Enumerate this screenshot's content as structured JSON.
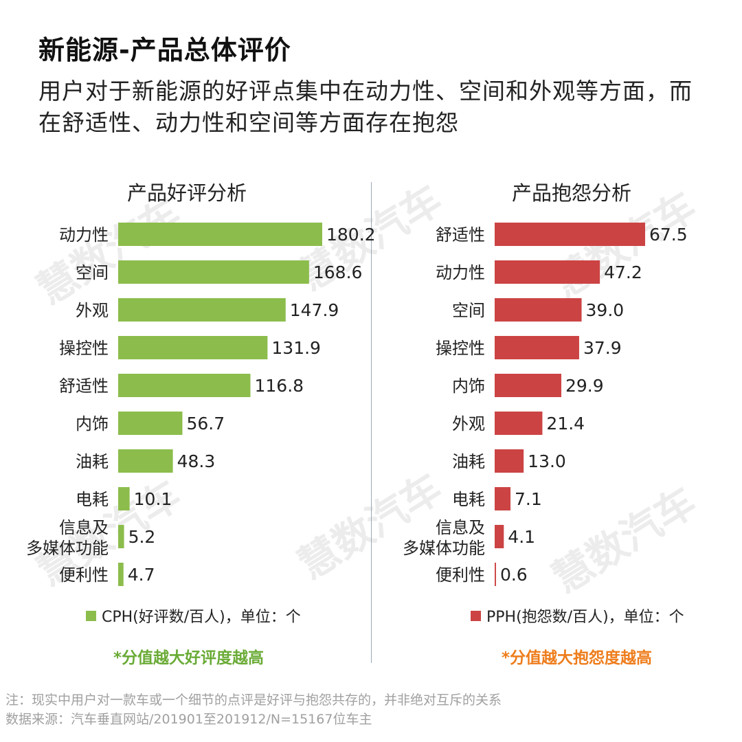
{
  "title": "新能源-产品总体评价",
  "subtitle": "用户对于新能源的好评点集中在动力性、空间和外观等方面，而在舒适性、动力性和空间等方面存在抱怨",
  "watermark": "慧数汽车",
  "colors": {
    "positive": "#8cbd4c",
    "negative": "#cc4344",
    "note_positive": "#6aab36",
    "note_negative": "#ee7d1c"
  },
  "chart_data": [
    {
      "type": "bar",
      "orientation": "horizontal",
      "title": "产品好评分析",
      "categories": [
        "动力性",
        "空间",
        "外观",
        "操控性",
        "舒适性",
        "内饰",
        "油耗",
        "电耗",
        "信息及\n多媒体功能",
        "便利性"
      ],
      "series": [
        {
          "name": "CPH(好评数/百人)，单位：个",
          "values": [
            180.2,
            168.6,
            147.9,
            131.9,
            116.8,
            56.7,
            48.3,
            10.1,
            5.2,
            4.7
          ]
        }
      ],
      "xlim": [
        0,
        180.2
      ],
      "legend": "bottom",
      "note": "*分值越大好评度越高"
    },
    {
      "type": "bar",
      "orientation": "horizontal",
      "title": "产品抱怨分析",
      "categories": [
        "舒适性",
        "动力性",
        "空间",
        "操控性",
        "内饰",
        "外观",
        "油耗",
        "电耗",
        "信息及\n多媒体功能",
        "便利性"
      ],
      "series": [
        {
          "name": "PPH(抱怨数/百人)，单位：个",
          "values": [
            67.5,
            47.2,
            39.0,
            37.9,
            29.9,
            21.4,
            13.0,
            7.1,
            4.1,
            0.6
          ]
        }
      ],
      "xlim": [
        0,
        67.5
      ],
      "legend": "bottom",
      "note": "*分值越大抱怨度越高"
    }
  ],
  "footnotes": {
    "note": "注：现实中用户对一款车或一个细节的点评是好评与抱怨共存的，并非绝对互斥的关系",
    "source": "数据来源：汽车垂直网站/201901至201912/N=15167位车主"
  }
}
